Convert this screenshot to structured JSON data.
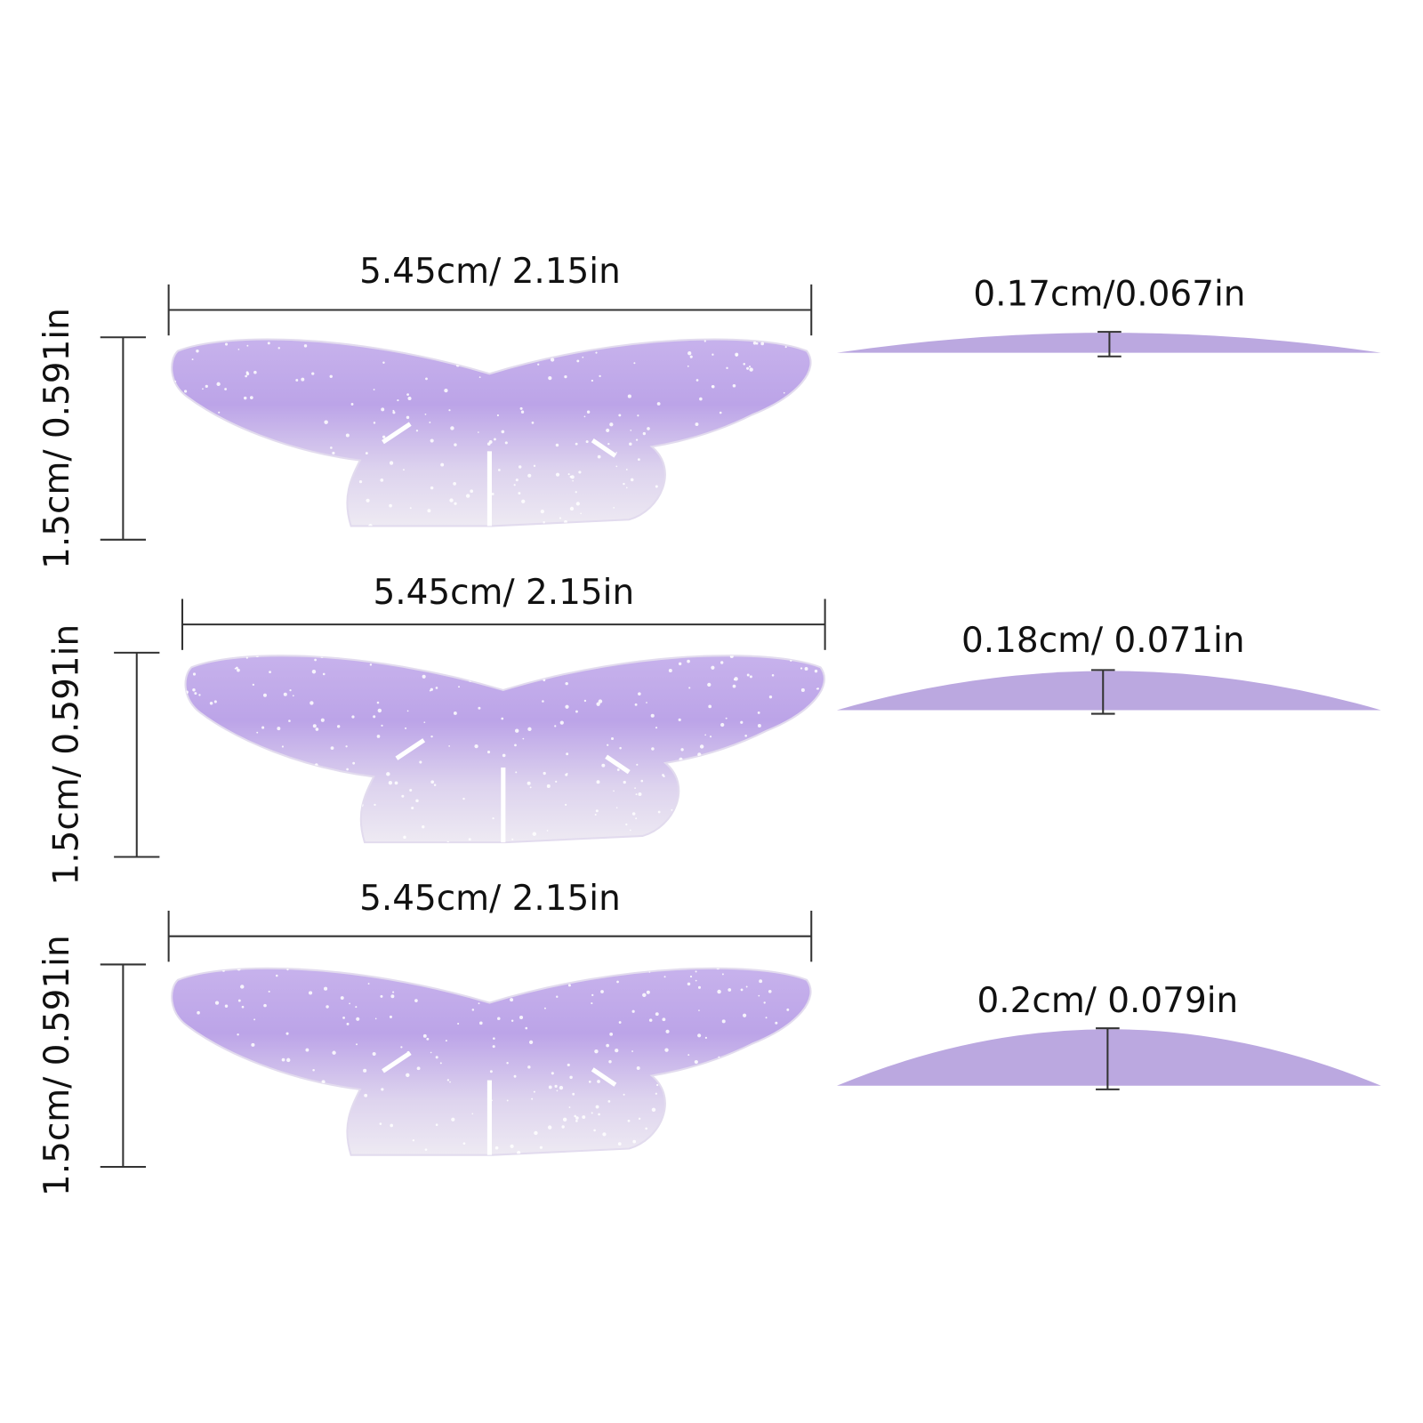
{
  "pads": [
    {
      "width": "5.45cm/ 2.15in",
      "height": "1.5cm/ 0.591in",
      "thickness": "0.17cm/0.067in"
    },
    {
      "width": "5.45cm/ 2.15in",
      "height": "1.5cm/ 0.591in",
      "thickness": "0.18cm/ 0.071in"
    },
    {
      "width": "5.45cm/ 2.15in",
      "height": "1.5cm/ 0.591in",
      "thickness": "0.2cm/ 0.079in"
    }
  ]
}
